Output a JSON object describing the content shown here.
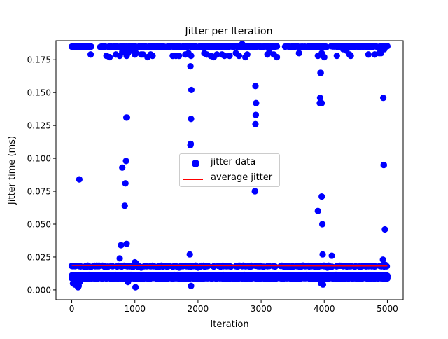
{
  "chart_data": {
    "type": "scatter",
    "title": "Jitter per Iteration",
    "xlabel": "Iteration",
    "ylabel": "Jitter time (ms)",
    "xlim": [
      -250,
      5250
    ],
    "ylim": [
      -0.0075,
      0.1895
    ],
    "xticks": [
      "0",
      "1000",
      "2000",
      "3000",
      "4000",
      "5000"
    ],
    "xtick_values": [
      0,
      1000,
      2000,
      3000,
      4000,
      5000
    ],
    "yticks": [
      "0.000",
      "0.025",
      "0.050",
      "0.075",
      "0.100",
      "0.125",
      "0.150",
      "0.175"
    ],
    "ytick_values": [
      0,
      0.025,
      0.05,
      0.075,
      0.1,
      0.125,
      0.15,
      0.175
    ],
    "grid": false,
    "legend_position": "center",
    "series": [
      {
        "name": "jitter data",
        "kind": "scatter",
        "color": "#0000ff",
        "n_iterations": 5000,
        "dense_bands": [
          {
            "y": 0.01,
            "x_from": 0,
            "x_to": 5000
          },
          {
            "y": 0.009,
            "x_from": 0,
            "x_to": 5000
          },
          {
            "y": 0.011,
            "x_from": 0,
            "x_to": 5000
          }
        ],
        "points": [
          [
            20,
            0.005
          ],
          [
            50,
            0.004
          ],
          [
            80,
            0.006
          ],
          [
            100,
            0.002
          ],
          [
            110,
            0.003
          ],
          [
            130,
            0.006
          ],
          [
            120,
            0.084
          ],
          [
            125,
            0.018
          ],
          [
            370,
            0.018
          ],
          [
            400,
            0.018
          ],
          [
            430,
            0.018
          ],
          [
            720,
            0.018
          ],
          [
            760,
            0.024
          ],
          [
            780,
            0.034
          ],
          [
            800,
            0.093
          ],
          [
            840,
            0.064
          ],
          [
            850,
            0.081
          ],
          [
            860,
            0.098
          ],
          [
            865,
            0.131
          ],
          [
            870,
            0.035
          ],
          [
            875,
            0.131
          ],
          [
            890,
            0.006
          ],
          [
            920,
            0.008
          ],
          [
            1000,
            0.021
          ],
          [
            1020,
            0.02
          ],
          [
            1010,
            0.002
          ],
          [
            1100,
            0.017
          ],
          [
            1150,
            0.018
          ],
          [
            1190,
            0.018
          ],
          [
            1260,
            0.018
          ],
          [
            1300,
            0.018
          ],
          [
            1380,
            0.018
          ],
          [
            1450,
            0.018
          ],
          [
            1500,
            0.018
          ],
          [
            1620,
            0.018
          ],
          [
            1700,
            0.017
          ],
          [
            1760,
            0.018
          ],
          [
            1840,
            0.018
          ],
          [
            1870,
            0.027
          ],
          [
            1880,
            0.11
          ],
          [
            1885,
            0.111
          ],
          [
            1890,
            0.13
          ],
          [
            1895,
            0.152
          ],
          [
            1880,
            0.17
          ],
          [
            1890,
            0.003
          ],
          [
            1900,
            0.018
          ],
          [
            2000,
            0.017
          ],
          [
            2050,
            0.018
          ],
          [
            2100,
            0.018
          ],
          [
            2250,
            0.018
          ],
          [
            2400,
            0.018
          ],
          [
            2450,
            0.018
          ],
          [
            2600,
            0.018
          ],
          [
            2700,
            0.018
          ],
          [
            2800,
            0.018
          ],
          [
            2850,
            0.018
          ],
          [
            2900,
            0.075
          ],
          [
            2905,
            0.075
          ],
          [
            2910,
            0.126
          ],
          [
            2915,
            0.133
          ],
          [
            2920,
            0.142
          ],
          [
            2910,
            0.155
          ],
          [
            2950,
            0.018
          ],
          [
            3000,
            0.018
          ],
          [
            3100,
            0.018
          ],
          [
            3200,
            0.018
          ],
          [
            3350,
            0.018
          ],
          [
            3400,
            0.018
          ],
          [
            3500,
            0.018
          ],
          [
            3600,
            0.018
          ],
          [
            3700,
            0.018
          ],
          [
            3800,
            0.018
          ],
          [
            3850,
            0.018
          ],
          [
            3900,
            0.06
          ],
          [
            3930,
            0.142
          ],
          [
            3935,
            0.146
          ],
          [
            3940,
            0.165
          ],
          [
            3945,
            0.165
          ],
          [
            3950,
            0.005
          ],
          [
            3960,
            0.071
          ],
          [
            3970,
            0.05
          ],
          [
            3975,
            0.027
          ],
          [
            3960,
            0.142
          ],
          [
            3980,
            0.004
          ],
          [
            4000,
            0.018
          ],
          [
            4050,
            0.017
          ],
          [
            4120,
            0.026
          ],
          [
            4200,
            0.018
          ],
          [
            4300,
            0.018
          ],
          [
            4400,
            0.018
          ],
          [
            4500,
            0.018
          ],
          [
            4600,
            0.018
          ],
          [
            4700,
            0.018
          ],
          [
            4800,
            0.018
          ],
          [
            4900,
            0.018
          ],
          [
            4930,
            0.023
          ],
          [
            4940,
            0.095
          ],
          [
            4945,
            0.095
          ],
          [
            4935,
            0.146
          ],
          [
            4960,
            0.046
          ],
          [
            4970,
            0.019
          ],
          [
            4990,
            0.018
          ]
        ],
        "top_band": {
          "y_main": 0.185,
          "ranges": [
            [
              0,
              320
            ],
            [
              450,
              540
            ],
            [
              580,
              1020
            ],
            [
              1060,
              2100
            ],
            [
              2060,
              3250
            ],
            [
              3380,
              4050
            ],
            [
              4110,
              4870
            ],
            [
              4860,
              5000
            ]
          ],
          "lower_cluster_points": [
            [
              300,
              0.179
            ],
            [
              550,
              0.178
            ],
            [
              600,
              0.177
            ],
            [
              700,
              0.179
            ],
            [
              760,
              0.178
            ],
            [
              800,
              0.181
            ],
            [
              820,
              0.183
            ],
            [
              870,
              0.178
            ],
            [
              890,
              0.18
            ],
            [
              950,
              0.182
            ],
            [
              1000,
              0.179
            ],
            [
              1020,
              0.18
            ],
            [
              1100,
              0.179
            ],
            [
              1130,
              0.179
            ],
            [
              1200,
              0.177
            ],
            [
              1250,
              0.179
            ],
            [
              1280,
              0.178
            ],
            [
              1600,
              0.178
            ],
            [
              1650,
              0.178
            ],
            [
              1700,
              0.178
            ],
            [
              1800,
              0.179
            ],
            [
              1850,
              0.18
            ],
            [
              1890,
              0.178
            ],
            [
              2100,
              0.18
            ],
            [
              2140,
              0.179
            ],
            [
              2200,
              0.178
            ],
            [
              2250,
              0.177
            ],
            [
              2300,
              0.179
            ],
            [
              2380,
              0.179
            ],
            [
              2420,
              0.178
            ],
            [
              2500,
              0.178
            ],
            [
              2600,
              0.18
            ],
            [
              2650,
              0.178
            ],
            [
              2700,
              0.187
            ],
            [
              2750,
              0.177
            ],
            [
              2780,
              0.179
            ],
            [
              3100,
              0.179
            ],
            [
              3130,
              0.181
            ],
            [
              3200,
              0.179
            ],
            [
              3250,
              0.177
            ],
            [
              3600,
              0.18
            ],
            [
              3900,
              0.178
            ],
            [
              3960,
              0.18
            ],
            [
              4000,
              0.177
            ],
            [
              4200,
              0.178
            ],
            [
              4300,
              0.183
            ],
            [
              4350,
              0.182
            ],
            [
              4400,
              0.179
            ],
            [
              4420,
              0.178
            ],
            [
              4700,
              0.179
            ],
            [
              4800,
              0.179
            ],
            [
              4870,
              0.18
            ],
            [
              4900,
              0.18
            ],
            [
              4950,
              0.183
            ]
          ]
        }
      },
      {
        "name": "average jitter",
        "kind": "line",
        "color": "#ff0000",
        "x": [
          0,
          5000
        ],
        "y": [
          0.0186,
          0.0182
        ]
      }
    ]
  }
}
